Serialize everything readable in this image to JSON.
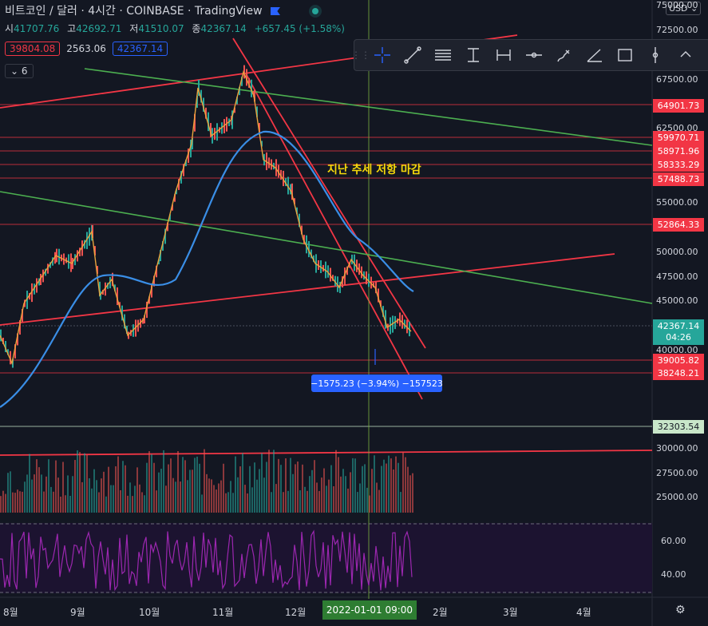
{
  "header": {
    "title": "비트코인 / 달러 · 4시간 · COINBASE · TradingView",
    "ohlc": [
      {
        "label": "시",
        "value": "41707.76"
      },
      {
        "label": "고",
        "value": "42692.71"
      },
      {
        "label": "저",
        "value": "41510.07"
      },
      {
        "label": "종",
        "value": "42367.14"
      }
    ],
    "change": "+657.45 (+1.58%)",
    "bid": "39804.08",
    "spread": "2563.06",
    "ask": "42367.14",
    "collapse_count": "6"
  },
  "currency_button": "USD",
  "price_axis": {
    "labels": [
      "75000.00",
      "72500.00",
      "67500.00",
      "62500.00",
      "55000.00",
      "50000.00",
      "47500.00",
      "45000.00",
      "40000.00",
      "30000.00",
      "27500.00",
      "25000.00"
    ],
    "tags": [
      "64901.73",
      "59970.71",
      "58971.96",
      "58333.29",
      "57488.73",
      "52864.33",
      "39005.82",
      "38248.21"
    ],
    "last_price": "42367.14",
    "countdown": "04:26",
    "green_tag": "32303.54",
    "rsi_labels": [
      "60.00",
      "40.00"
    ]
  },
  "annotation_text": "지난 추세 저항 마감",
  "measure_text": "−1575.23 (−3.94%) −157523",
  "time_axis": {
    "labels": [
      "8월",
      "9월",
      "10월",
      "11월",
      "12월",
      "2월",
      "3월",
      "4월"
    ],
    "crosshair_time": "2022-01-01  09:00"
  },
  "toolbar": {
    "tools": [
      "crosshair-tool",
      "trend-line-tool",
      "fib-tool",
      "price-range-tool",
      "date-range-tool",
      "horizontal-ray-tool",
      "brush-tool",
      "angle-tool",
      "rectangle-tool",
      "vertical-line-tool",
      "more-tool"
    ]
  },
  "colors": {
    "background": "#131722",
    "up": "#26a69a",
    "down": "#ef5350",
    "ma_blue": "#3a8ee6",
    "ma_orange": "#e8a33d",
    "trend_red": "#f23645",
    "trend_green": "#4caf50",
    "rsi": "#9c27b0",
    "annotation": "#f5d90a"
  }
}
